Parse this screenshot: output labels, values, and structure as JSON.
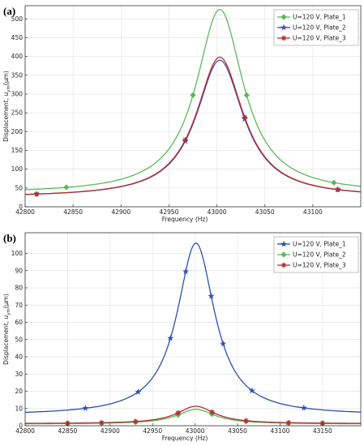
{
  "chart_data": [
    {
      "type": "line",
      "panel_label": "(a)",
      "xlabel": "Frequency (Hz)",
      "ylabel_parts": [
        "Displacement, ",
        "u",
        "ym",
        "(μm)"
      ],
      "xlim": [
        42800,
        43150
      ],
      "ylim": [
        0,
        535
      ],
      "xticks": [
        42800,
        42850,
        42900,
        42950,
        43000,
        43050,
        43100
      ],
      "yticks": [
        0,
        50,
        100,
        150,
        200,
        250,
        300,
        350,
        400,
        450,
        500
      ],
      "legend_position": "top-right",
      "series": [
        {
          "name": "U=120 V, Plate_1",
          "color": "#5cb85c",
          "marker": "diamond",
          "peak_x": 43003,
          "peak_y": 525,
          "gamma": 30,
          "baseline": 35,
          "markers_x": [
            42843,
            42975,
            43031,
            43122
          ]
        },
        {
          "name": "U=120 V, Plate_2",
          "color": "#4b4fa8",
          "marker": "star",
          "peak_x": 43003,
          "peak_y": 390,
          "gamma": 30,
          "baseline": 25,
          "markers_x": [
            42812,
            42967,
            43029,
            43126
          ]
        },
        {
          "name": "U=120 V, Plate_3",
          "color": "#b03030",
          "marker": "plus",
          "peak_x": 43003,
          "peak_y": 398,
          "gamma": 30,
          "baseline": 25,
          "markers_x": [
            42812,
            42967,
            43029,
            43126
          ]
        }
      ]
    },
    {
      "type": "line",
      "panel_label": "(b)",
      "xlabel": "Frequency (Hz)",
      "ylabel_parts": [
        "Displacement, ",
        "u",
        "ym",
        "(μm)"
      ],
      "xlim": [
        42800,
        43195
      ],
      "ylim": [
        0,
        112
      ],
      "xticks": [
        42800,
        42850,
        42900,
        42950,
        43000,
        43050,
        43100,
        43150
      ],
      "yticks": [
        0,
        10,
        20,
        30,
        40,
        50,
        60,
        70,
        80,
        90,
        100
      ],
      "legend_position": "top-right",
      "series": [
        {
          "name": "U=120 V, Plate_1",
          "color": "#2a4fb0",
          "marker": "star",
          "peak_x": 43001,
          "peak_y": 106,
          "gamma": 27,
          "baseline": 6,
          "markers_x": [
            42871,
            42933,
            42971,
            42989,
            43019,
            43033,
            43067,
            43128
          ]
        },
        {
          "name": "U=120 V, Plate_2",
          "color": "#5cb85c",
          "marker": "diamond",
          "peak_x": 43001,
          "peak_y": 9.5,
          "gamma": 27,
          "baseline": 1,
          "markers_x": [
            42850,
            42890,
            42930,
            42980,
            43020,
            43060,
            43110,
            43150
          ]
        },
        {
          "name": "U=120 V, Plate_3",
          "color": "#b03030",
          "marker": "plus",
          "peak_x": 43001,
          "peak_y": 11.3,
          "gamma": 27,
          "baseline": 1.2,
          "markers_x": [
            42850,
            42890,
            42930,
            42980,
            43020,
            43060,
            43110,
            43150
          ]
        }
      ]
    }
  ]
}
